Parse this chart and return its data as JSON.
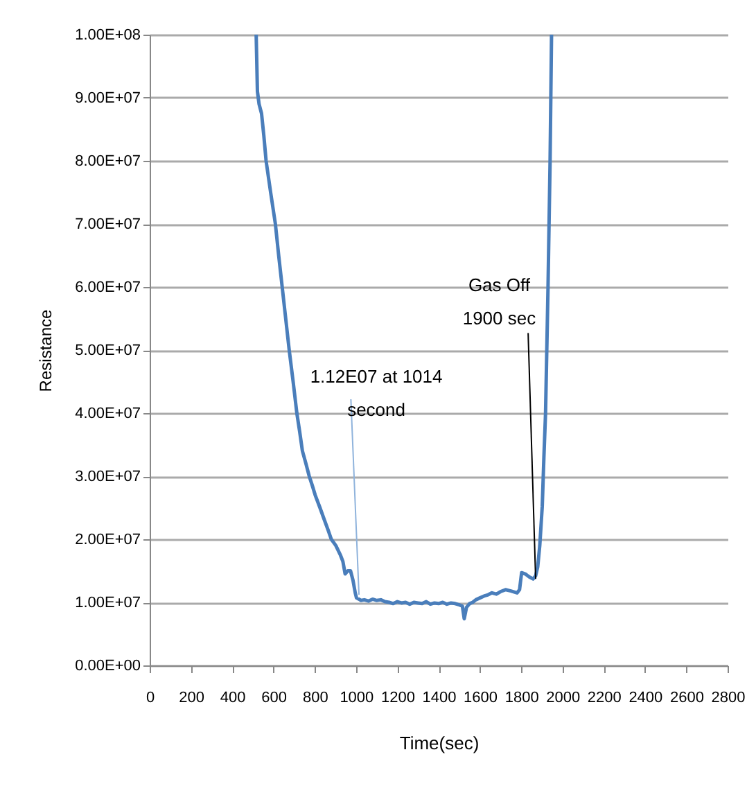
{
  "chart_data": {
    "type": "line",
    "xlabel": "Time(sec)",
    "ylabel": "Resistance",
    "x": [
      516,
      518,
      520,
      522,
      530,
      542,
      553,
      564,
      586,
      609,
      625,
      642,
      659,
      676,
      695,
      713,
      727,
      740,
      757,
      773,
      788,
      802,
      825,
      847,
      864,
      880,
      902,
      924,
      936,
      947,
      960,
      973,
      985,
      996,
      1002,
      1014,
      1024,
      1040,
      1060,
      1080,
      1100,
      1120,
      1140,
      1160,
      1180,
      1200,
      1220,
      1240,
      1260,
      1280,
      1300,
      1320,
      1340,
      1360,
      1380,
      1400,
      1420,
      1440,
      1460,
      1480,
      1500,
      1515,
      1524,
      1535,
      1550,
      1565,
      1580,
      1600,
      1620,
      1640,
      1658,
      1680,
      1700,
      1724,
      1750,
      1780,
      1792,
      1802,
      1820,
      1840,
      1858,
      1870,
      1880,
      1890,
      1902,
      1910,
      1918,
      1930,
      1940,
      1947
    ],
    "series": [
      {
        "color": "#4a7ebb",
        "values": [
          100000000,
          97000000,
          94000000,
          91000000,
          89000000,
          87500000,
          84000000,
          80000000,
          75000000,
          70000000,
          65000000,
          60000000,
          55000000,
          50000000,
          45000000,
          40000000,
          37000000,
          34000000,
          32000000,
          30000000,
          28500000,
          27000000,
          25000000,
          23000000,
          21500000,
          20000000,
          19000000,
          17500000,
          16500000,
          14500000,
          15000000,
          15000000,
          13500000,
          11500000,
          10700000,
          10500000,
          10300000,
          10400000,
          10200000,
          10500000,
          10300000,
          10400000,
          10100000,
          10000000,
          9800000,
          10100000,
          9900000,
          10000000,
          9700000,
          10000000,
          9900000,
          9800000,
          10100000,
          9700000,
          9900000,
          9800000,
          10000000,
          9700000,
          9900000,
          9800000,
          9600000,
          9400000,
          7400000,
          9200000,
          9800000,
          10000000,
          10400000,
          10700000,
          11000000,
          11200000,
          11500000,
          11300000,
          11700000,
          12000000,
          11800000,
          11500000,
          12000000,
          14700000,
          14500000,
          14000000,
          13700000,
          14200000,
          15600000,
          19000000,
          25200000,
          33000000,
          40000000,
          60000000,
          80000000,
          100000000
        ]
      }
    ],
    "xlim": [
      0,
      2800
    ],
    "xticks": [
      0,
      200,
      400,
      600,
      800,
      1000,
      1200,
      1400,
      1600,
      1800,
      2000,
      2200,
      2400,
      2600,
      2800
    ],
    "ylim": [
      0,
      100000000
    ],
    "yticks": [
      {
        "value": 0,
        "label": "0.00E+00"
      },
      {
        "value": 10000000,
        "label": "1.00E+07"
      },
      {
        "value": 20000000,
        "label": "2.00E+07"
      },
      {
        "value": 30000000,
        "label": "3.00E+07"
      },
      {
        "value": 40000000,
        "label": "4.00E+07"
      },
      {
        "value": 50000000,
        "label": "5.00E+07"
      },
      {
        "value": 60000000,
        "label": "6.00E+07"
      },
      {
        "value": 70000000,
        "label": "7.00E+07"
      },
      {
        "value": 80000000,
        "label": "8.00E+07"
      },
      {
        "value": 90000000,
        "label": "9.00E+07"
      },
      {
        "value": 100000000,
        "label": "1.00E+08"
      }
    ],
    "grid": "y",
    "marker": "none",
    "line_style": "solid",
    "annotations": [
      {
        "text": "1.12E07 at 1014\nsecond",
        "x": 1014,
        "y": 11200000
      },
      {
        "text": "Gas Off\n1900 sec",
        "x": 1870,
        "y": 13700000
      }
    ]
  }
}
